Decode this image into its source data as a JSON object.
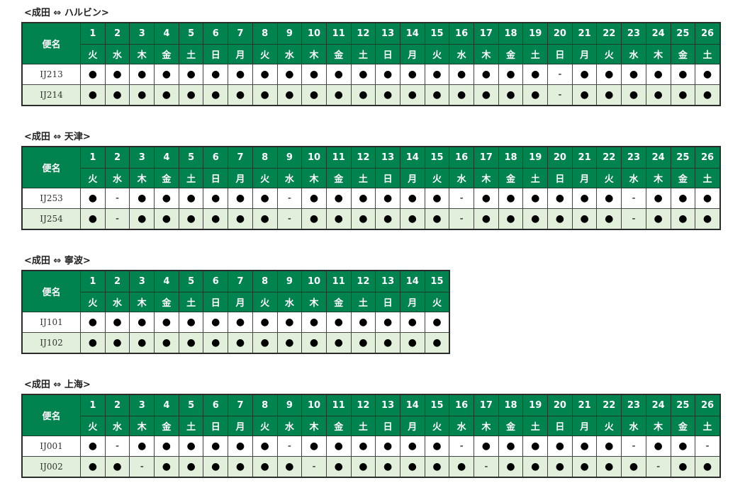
{
  "header_label": "便名",
  "colors": {
    "header_bg": "#00834f",
    "alt_row_bg": "#e2efda"
  },
  "symbols": {
    "operating": "●",
    "not_operating": "-"
  },
  "routes": [
    {
      "title": "<成田 ⇔ ハルビン>",
      "days": [
        "1",
        "2",
        "3",
        "4",
        "5",
        "6",
        "7",
        "8",
        "9",
        "10",
        "11",
        "12",
        "13",
        "14",
        "15",
        "16",
        "17",
        "18",
        "19",
        "20",
        "21",
        "22",
        "23",
        "24",
        "25",
        "26"
      ],
      "weekdays": [
        "火",
        "水",
        "木",
        "金",
        "土",
        "日",
        "月",
        "火",
        "水",
        "木",
        "金",
        "土",
        "日",
        "月",
        "火",
        "水",
        "木",
        "金",
        "土",
        "日",
        "月",
        "火",
        "水",
        "木",
        "金",
        "土"
      ],
      "flights": [
        {
          "number": "IJ213",
          "marks": [
            "●",
            "●",
            "●",
            "●",
            "●",
            "●",
            "●",
            "●",
            "●",
            "●",
            "●",
            "●",
            "●",
            "●",
            "●",
            "●",
            "●",
            "●",
            "●",
            "-",
            "●",
            "●",
            "●",
            "●",
            "●",
            "●"
          ]
        },
        {
          "number": "IJ214",
          "marks": [
            "●",
            "●",
            "●",
            "●",
            "●",
            "●",
            "●",
            "●",
            "●",
            "●",
            "●",
            "●",
            "●",
            "●",
            "●",
            "●",
            "●",
            "●",
            "●",
            "-",
            "●",
            "●",
            "●",
            "●",
            "●",
            "●"
          ]
        }
      ]
    },
    {
      "title": "<成田 ⇔ 天津>",
      "days": [
        "1",
        "2",
        "3",
        "4",
        "5",
        "6",
        "7",
        "8",
        "9",
        "10",
        "11",
        "12",
        "13",
        "14",
        "15",
        "16",
        "17",
        "18",
        "19",
        "20",
        "21",
        "22",
        "23",
        "24",
        "25",
        "26"
      ],
      "weekdays": [
        "火",
        "水",
        "木",
        "金",
        "土",
        "日",
        "月",
        "火",
        "水",
        "木",
        "金",
        "土",
        "日",
        "月",
        "火",
        "水",
        "木",
        "金",
        "土",
        "日",
        "月",
        "火",
        "水",
        "木",
        "金",
        "土"
      ],
      "flights": [
        {
          "number": "IJ253",
          "marks": [
            "●",
            "-",
            "●",
            "●",
            "●",
            "●",
            "●",
            "●",
            "-",
            "●",
            "●",
            "●",
            "●",
            "●",
            "●",
            "-",
            "●",
            "●",
            "●",
            "●",
            "●",
            "●",
            "-",
            "●",
            "●",
            "●"
          ]
        },
        {
          "number": "IJ254",
          "marks": [
            "●",
            "-",
            "●",
            "●",
            "●",
            "●",
            "●",
            "●",
            "-",
            "●",
            "●",
            "●",
            "●",
            "●",
            "●",
            "-",
            "●",
            "●",
            "●",
            "●",
            "●",
            "●",
            "-",
            "●",
            "●",
            "●"
          ]
        }
      ]
    },
    {
      "title": "<成田 ⇔ 寧波>",
      "days": [
        "1",
        "2",
        "3",
        "4",
        "5",
        "6",
        "7",
        "8",
        "9",
        "10",
        "11",
        "12",
        "13",
        "14",
        "15"
      ],
      "weekdays": [
        "火",
        "水",
        "木",
        "金",
        "土",
        "日",
        "月",
        "火",
        "水",
        "木",
        "金",
        "土",
        "日",
        "月",
        "火"
      ],
      "flights": [
        {
          "number": "IJ101",
          "marks": [
            "●",
            "●",
            "●",
            "●",
            "●",
            "●",
            "●",
            "●",
            "●",
            "●",
            "●",
            "●",
            "●",
            "●",
            "●"
          ]
        },
        {
          "number": "IJ102",
          "marks": [
            "●",
            "●",
            "●",
            "●",
            "●",
            "●",
            "●",
            "●",
            "●",
            "●",
            "●",
            "●",
            "●",
            "●",
            "●"
          ]
        }
      ]
    },
    {
      "title": "<成田 ⇔ 上海>",
      "days": [
        "1",
        "2",
        "3",
        "4",
        "5",
        "6",
        "7",
        "8",
        "9",
        "10",
        "11",
        "12",
        "13",
        "14",
        "15",
        "16",
        "17",
        "18",
        "19",
        "20",
        "21",
        "22",
        "23",
        "24",
        "25",
        "26"
      ],
      "weekdays": [
        "火",
        "水",
        "木",
        "金",
        "土",
        "日",
        "月",
        "火",
        "水",
        "木",
        "金",
        "土",
        "日",
        "月",
        "火",
        "水",
        "木",
        "金",
        "土",
        "日",
        "月",
        "火",
        "水",
        "木",
        "金",
        "土"
      ],
      "flights": [
        {
          "number": "IJ001",
          "marks": [
            "●",
            "-",
            "●",
            "●",
            "●",
            "●",
            "●",
            "●",
            "-",
            "●",
            "●",
            "●",
            "●",
            "●",
            "●",
            "-",
            "●",
            "●",
            "●",
            "●",
            "●",
            "●",
            "-",
            "●",
            "●",
            "-"
          ]
        },
        {
          "number": "IJ002",
          "marks": [
            "●",
            "●",
            "-",
            "●",
            "●",
            "●",
            "●",
            "●",
            "●",
            "-",
            "●",
            "●",
            "●",
            "●",
            "●",
            "●",
            "-",
            "●",
            "●",
            "●",
            "●",
            "●",
            "●",
            "-",
            "●",
            "●"
          ]
        }
      ]
    }
  ]
}
